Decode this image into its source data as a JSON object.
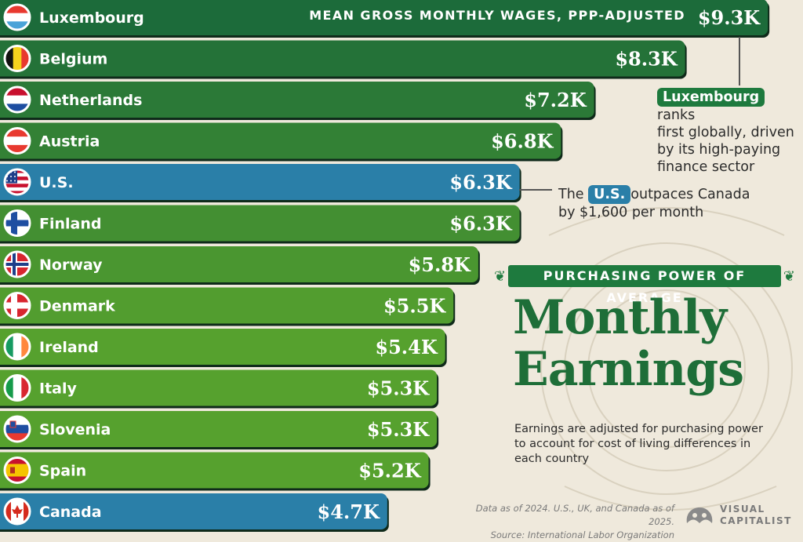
{
  "chart_data": {
    "type": "bar",
    "orientation": "horizontal",
    "title": "Monthly Earnings",
    "subtitle": "PURCHASING POWER OF AVERAGE",
    "header_note": "MEAN GROSS MONTHLY WAGES, PPP-ADJUSTED",
    "unit": "USD (thousands)",
    "categories": [
      "Luxembourg",
      "Belgium",
      "Netherlands",
      "Austria",
      "U.S.",
      "Finland",
      "Norway",
      "Denmark",
      "Ireland",
      "Italy",
      "Slovenia",
      "Spain",
      "Canada"
    ],
    "values": [
      9.3,
      8.3,
      7.2,
      6.8,
      6.3,
      6.3,
      5.8,
      5.5,
      5.4,
      5.3,
      5.3,
      5.2,
      4.7
    ],
    "value_labels": [
      "$9.3K",
      "$8.3K",
      "$7.2K",
      "$6.8K",
      "$6.3K",
      "$6.3K",
      "$5.8K",
      "$5.5K",
      "$5.4K",
      "$5.3K",
      "$5.3K",
      "$5.2K",
      "$4.7K"
    ],
    "highlighted": [
      "U.S.",
      "Canada"
    ],
    "flags": [
      "flag-luxembourg",
      "flag-belgium",
      "flag-netherlands",
      "flag-austria",
      "flag-us",
      "flag-finland",
      "flag-norway",
      "flag-denmark",
      "flag-ireland",
      "flag-italy",
      "flag-slovenia",
      "flag-spain",
      "flag-canada"
    ]
  },
  "colors": {
    "background": "#efe9dc",
    "bar_dark_green": "#1c6b3a",
    "bar_light_green": "#56a12e",
    "bar_highlight_blue": "#2a7fa8",
    "title_green": "#1e6e38"
  },
  "annotations": {
    "lux": {
      "pill": "Luxembourg",
      "after": "ranks",
      "rest": "first globally, driven by its high-paying finance sector"
    },
    "us": {
      "before": "The",
      "pill": "U.S.",
      "after": "outpaces Canada",
      "rest": "by $1,600 per month"
    }
  },
  "title_lines": [
    "Monthly",
    "Earnings"
  ],
  "description": "Earnings are adjusted for purchasing power to account for cost of living differences in each country",
  "source_lines": [
    "Data as of 2024. U.S., UK, and Canada as of 2025.",
    "Source: International Labor Organization"
  ],
  "brand": {
    "line1": "VISUAL",
    "line2": "CAPITALIST"
  }
}
